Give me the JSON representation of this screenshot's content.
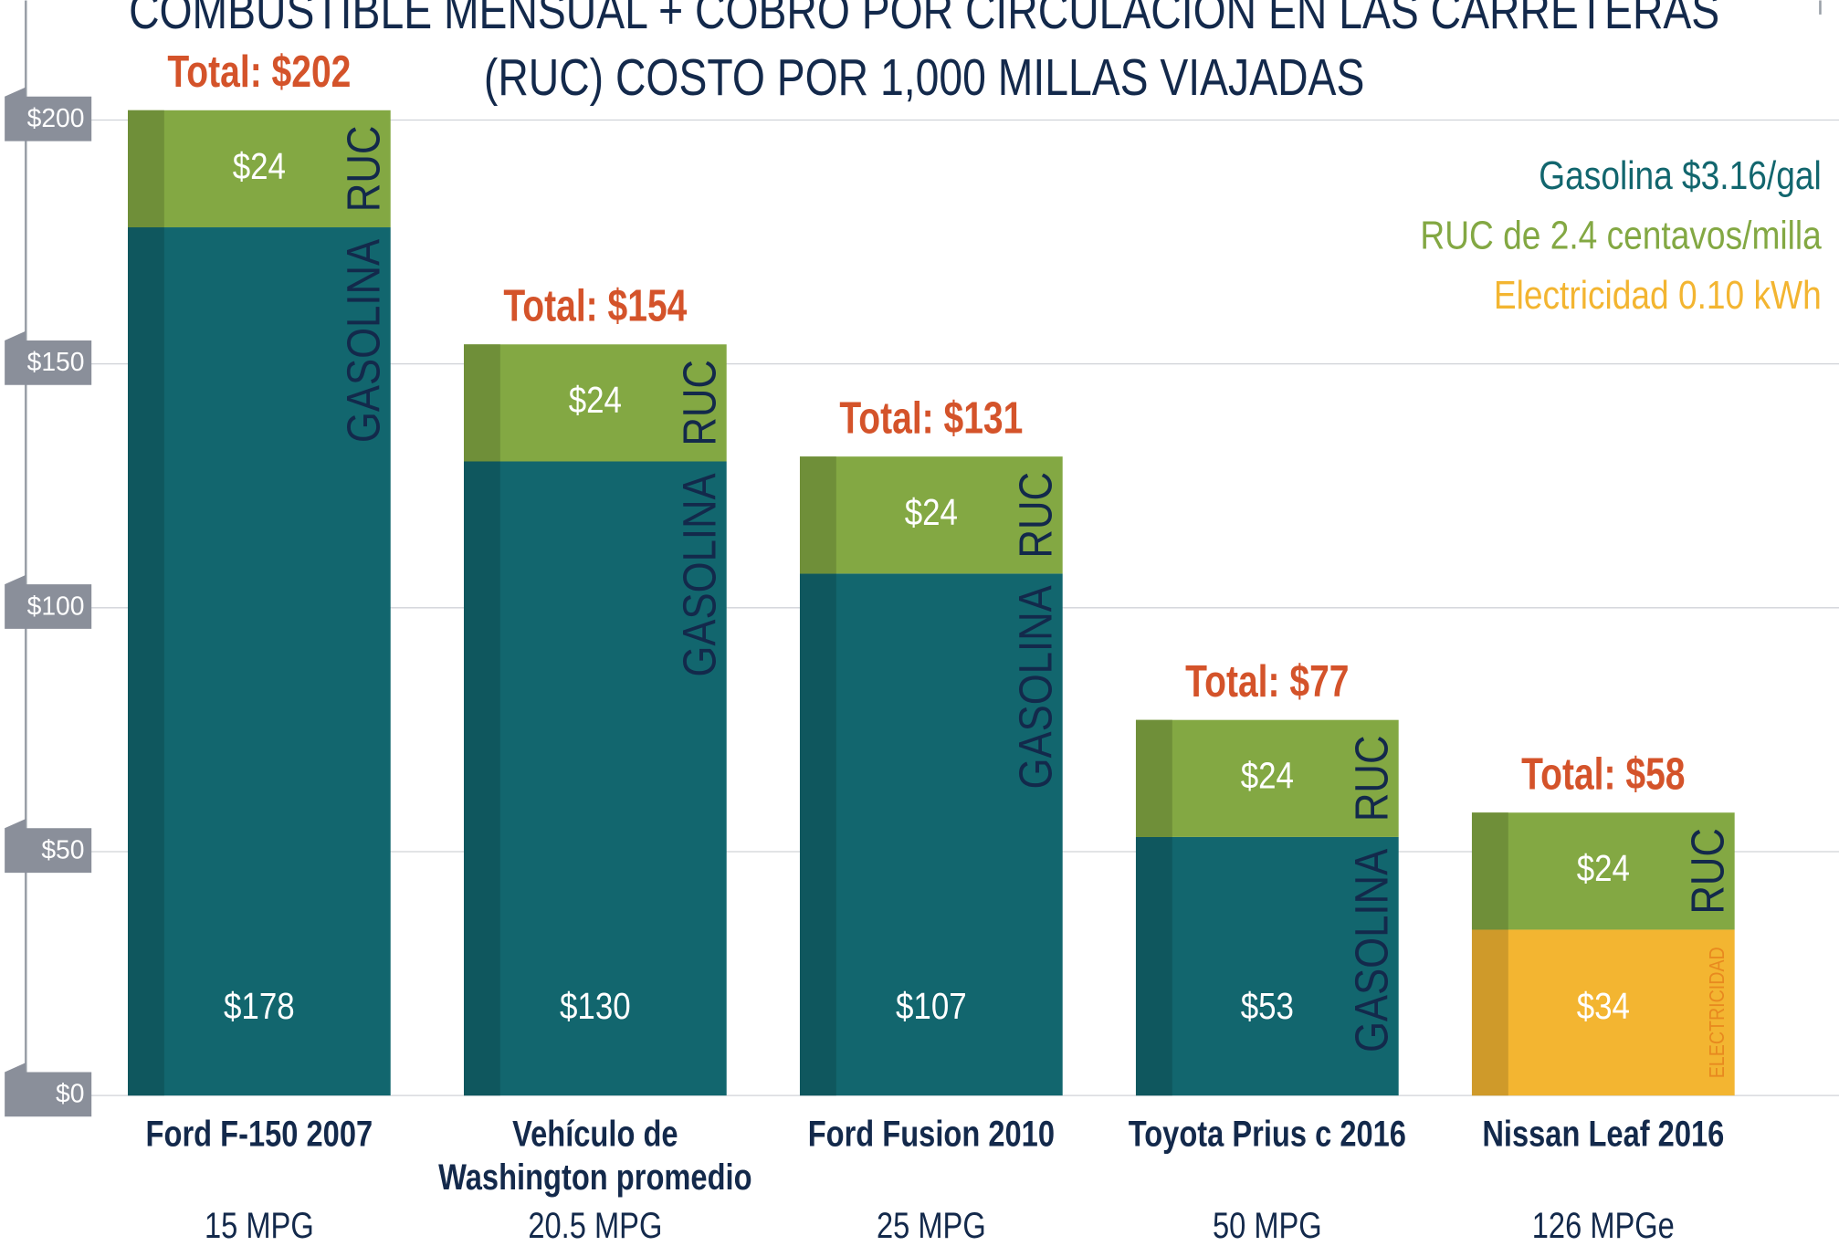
{
  "chart_data": {
    "type": "stacked_bar",
    "title": [
      "COMBUSTIBLE MENSUAL + COBRO POR CIRCULACIÓN EN LAS CARRETERAS",
      "(RUC) COSTO POR 1,000 MILLAS VIAJADAS"
    ],
    "categories": [
      [
        "Ford F-150 2007"
      ],
      [
        "Vehículo de",
        "Washington promedio"
      ],
      [
        "Ford Fusion 2010"
      ],
      [
        "Toyota Prius c 2016"
      ],
      [
        "Nissan Leaf 2016"
      ]
    ],
    "efficiency": [
      "15 MPG",
      "20.5 MPG",
      "25 MPG",
      "50 MPG",
      "126 MPGe"
    ],
    "series": [
      {
        "labels": [
          "GASOLINA",
          "GASOLINA",
          "GASOLINA",
          "GASOLINA",
          "ELECTRICIDAD"
        ],
        "colors": [
          "#12666e",
          "#12666e",
          "#12666e",
          "#12666e",
          "#f3b531"
        ],
        "values": [
          178,
          130,
          107,
          53,
          34
        ],
        "value_labels": [
          "$178",
          "$130",
          "$107",
          "$53",
          "$34"
        ]
      },
      {
        "name": "RUC",
        "color": "#83a843",
        "values": [
          24,
          24,
          24,
          24,
          24
        ],
        "value_labels": [
          "$24",
          "$24",
          "$24",
          "$24",
          "$24"
        ]
      }
    ],
    "totals": [
      202,
      154,
      131,
      77,
      58
    ],
    "total_labels": [
      "Total: $202",
      "Total: $154",
      "Total: $131",
      "Total: $77",
      "Total: $58"
    ],
    "legend": [
      {
        "text": "Gasolina $3.16/gal",
        "color": "#12666e"
      },
      {
        "text": "RUC de 2.4 centavos/milla",
        "color": "#83a843"
      },
      {
        "text": "Electricidad 0.10 kWh",
        "color": "#f3b531"
      }
    ],
    "ylim": [
      0,
      200
    ],
    "yticks": [
      {
        "value": 0,
        "label": "$0"
      },
      {
        "value": 50,
        "label": "$50"
      },
      {
        "value": 100,
        "label": "$100"
      },
      {
        "value": 150,
        "label": "$150"
      },
      {
        "value": 200,
        "label": "$200"
      }
    ],
    "grid": true
  }
}
